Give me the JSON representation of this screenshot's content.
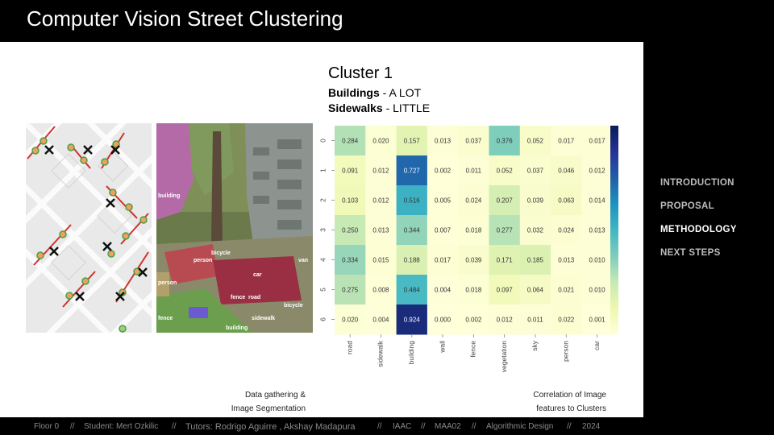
{
  "header": {
    "title": "Computer Vision Street Clustering"
  },
  "cluster": {
    "title": "Cluster 1",
    "line1_bold": "Buildings",
    "line1_rest": " - A LOT",
    "line2_bold": "Sidewalks",
    "line2_rest": " - LITTLE"
  },
  "nav": {
    "items": [
      "INTRODUCTION",
      "PROPOSAL",
      "METHODOLOGY",
      "NEXT STEPS"
    ],
    "active": "METHODOLOGY"
  },
  "captions": {
    "left_line1": "Data gathering &",
    "left_line2": "Image Segmentation",
    "right_line1": "Correlation of Image",
    "right_line2": "features to Clusters"
  },
  "segmentation_labels": [
    "building",
    "person",
    "bicycle",
    "car",
    "fence",
    "road",
    "bicycle",
    "person",
    "fence",
    "building",
    "sidewalk",
    "van"
  ],
  "footer": {
    "floor": "Floor 0",
    "student": "Student: Mert Ozkilic",
    "tutors": "Tutors: Rodrigo Aguirre , Akshay Madapura",
    "school": "IAAC",
    "program": "MAA02",
    "course": "Algorithmic Design",
    "year": "2024",
    "separator": "//"
  },
  "chart_data": {
    "type": "heatmap",
    "rows": [
      "0",
      "1",
      "2",
      "3",
      "4",
      "5",
      "6"
    ],
    "columns": [
      "road",
      "sidewalk",
      "building",
      "wall",
      "fence",
      "vegetation",
      "sky",
      "person",
      "car"
    ],
    "values": [
      [
        0.284,
        0.02,
        0.157,
        0.013,
        0.037,
        0.376,
        0.052,
        0.017,
        0.017
      ],
      [
        0.091,
        0.012,
        0.727,
        0.002,
        0.011,
        0.052,
        0.037,
        0.046,
        0.012
      ],
      [
        0.103,
        0.012,
        0.516,
        0.005,
        0.024,
        0.207,
        0.039,
        0.063,
        0.014
      ],
      [
        0.25,
        0.013,
        0.344,
        0.007,
        0.018,
        0.277,
        0.032,
        0.024,
        0.013
      ],
      [
        0.334,
        0.015,
        0.188,
        0.017,
        0.039,
        0.171,
        0.185,
        0.013,
        0.01
      ],
      [
        0.275,
        0.008,
        0.484,
        0.004,
        0.018,
        0.097,
        0.064,
        0.021,
        0.01
      ],
      [
        0.02,
        0.004,
        0.924,
        0.0,
        0.002,
        0.012,
        0.011,
        0.022,
        0.001
      ]
    ],
    "value_labels": [
      [
        "0.284",
        "0.020",
        "0.157",
        "0.013",
        "0.037",
        "0.376",
        "0.052",
        "0.017",
        "0.017"
      ],
      [
        "0.091",
        "0.012",
        "0.727",
        "0.002",
        "0.011",
        "0.052",
        "0.037",
        "0.046",
        "0.012"
      ],
      [
        "0.103",
        "0.012",
        "0.516",
        "0.005",
        "0.024",
        "0.207",
        "0.039",
        "0.063",
        "0.014"
      ],
      [
        "0.250",
        "0.013",
        "0.344",
        "0.007",
        "0.018",
        "0.277",
        "0.032",
        "0.024",
        "0.013"
      ],
      [
        "0.334",
        "0.015",
        "0.188",
        "0.017",
        "0.039",
        "0.171",
        "0.185",
        "0.013",
        "0.010"
      ],
      [
        "0.275",
        "0.008",
        "0.484",
        "0.004",
        "0.018",
        "0.097",
        "0.064",
        "0.021",
        "0.010"
      ],
      [
        "0.020",
        "0.004",
        "0.924",
        "0.000",
        "0.002",
        "0.012",
        "0.011",
        "0.022",
        "0.001"
      ]
    ],
    "colormap": "YlGnBu",
    "vmin": 0,
    "vmax": 1,
    "colorbar": true
  }
}
